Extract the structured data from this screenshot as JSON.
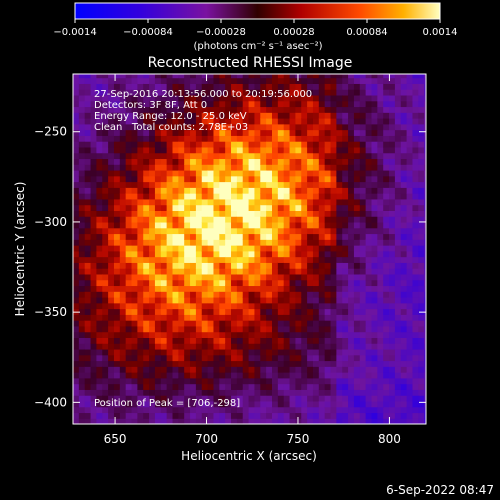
{
  "chart_data": {
    "type": "heatmap",
    "title": "Reconstructed RHESSI Image",
    "info_lines": [
      "27-Sep-2016 20:13:56.000 to 20:19:56.000",
      "Detectors: 3F 8F, Att 0",
      "Energy Range: 12.0 - 25.0 keV",
      "Clean   Total counts: 2.78E+03"
    ],
    "peak_label": "Position of Peak = [706,-298]",
    "peak_position": [
      706,
      -298
    ],
    "xlabel": "Heliocentric X (arcsec)",
    "ylabel": "Heliocentric Y (arcsec)",
    "xlim": [
      627,
      820
    ],
    "ylim": [
      -412,
      -218
    ],
    "xticks": [
      650,
      700,
      750,
      800
    ],
    "xtick_labels": [
      "650",
      "700",
      "750",
      "800"
    ],
    "yticks": [
      -400,
      -350,
      -300,
      -250
    ],
    "ytick_labels": [
      "−400",
      "−350",
      "−300",
      "−250"
    ],
    "colorbar": {
      "range": [
        -0.0014,
        0.0014
      ],
      "ticks": [
        -0.0014,
        -0.00084,
        -0.00028,
        0.00028,
        0.00084,
        0.0014
      ],
      "tick_labels": [
        "−0.0014",
        "−0.00084",
        "−0.00028",
        "0.00028",
        "0.00084",
        "0.0014"
      ],
      "unit_label": "(photons cm⁻² s⁻¹ asec⁻²)"
    },
    "source_center": [
      707,
      -300
    ],
    "source_peak_value": 0.0014,
    "grid": false
  },
  "footer": {
    "date": "6-Sep-2022 08:47"
  }
}
